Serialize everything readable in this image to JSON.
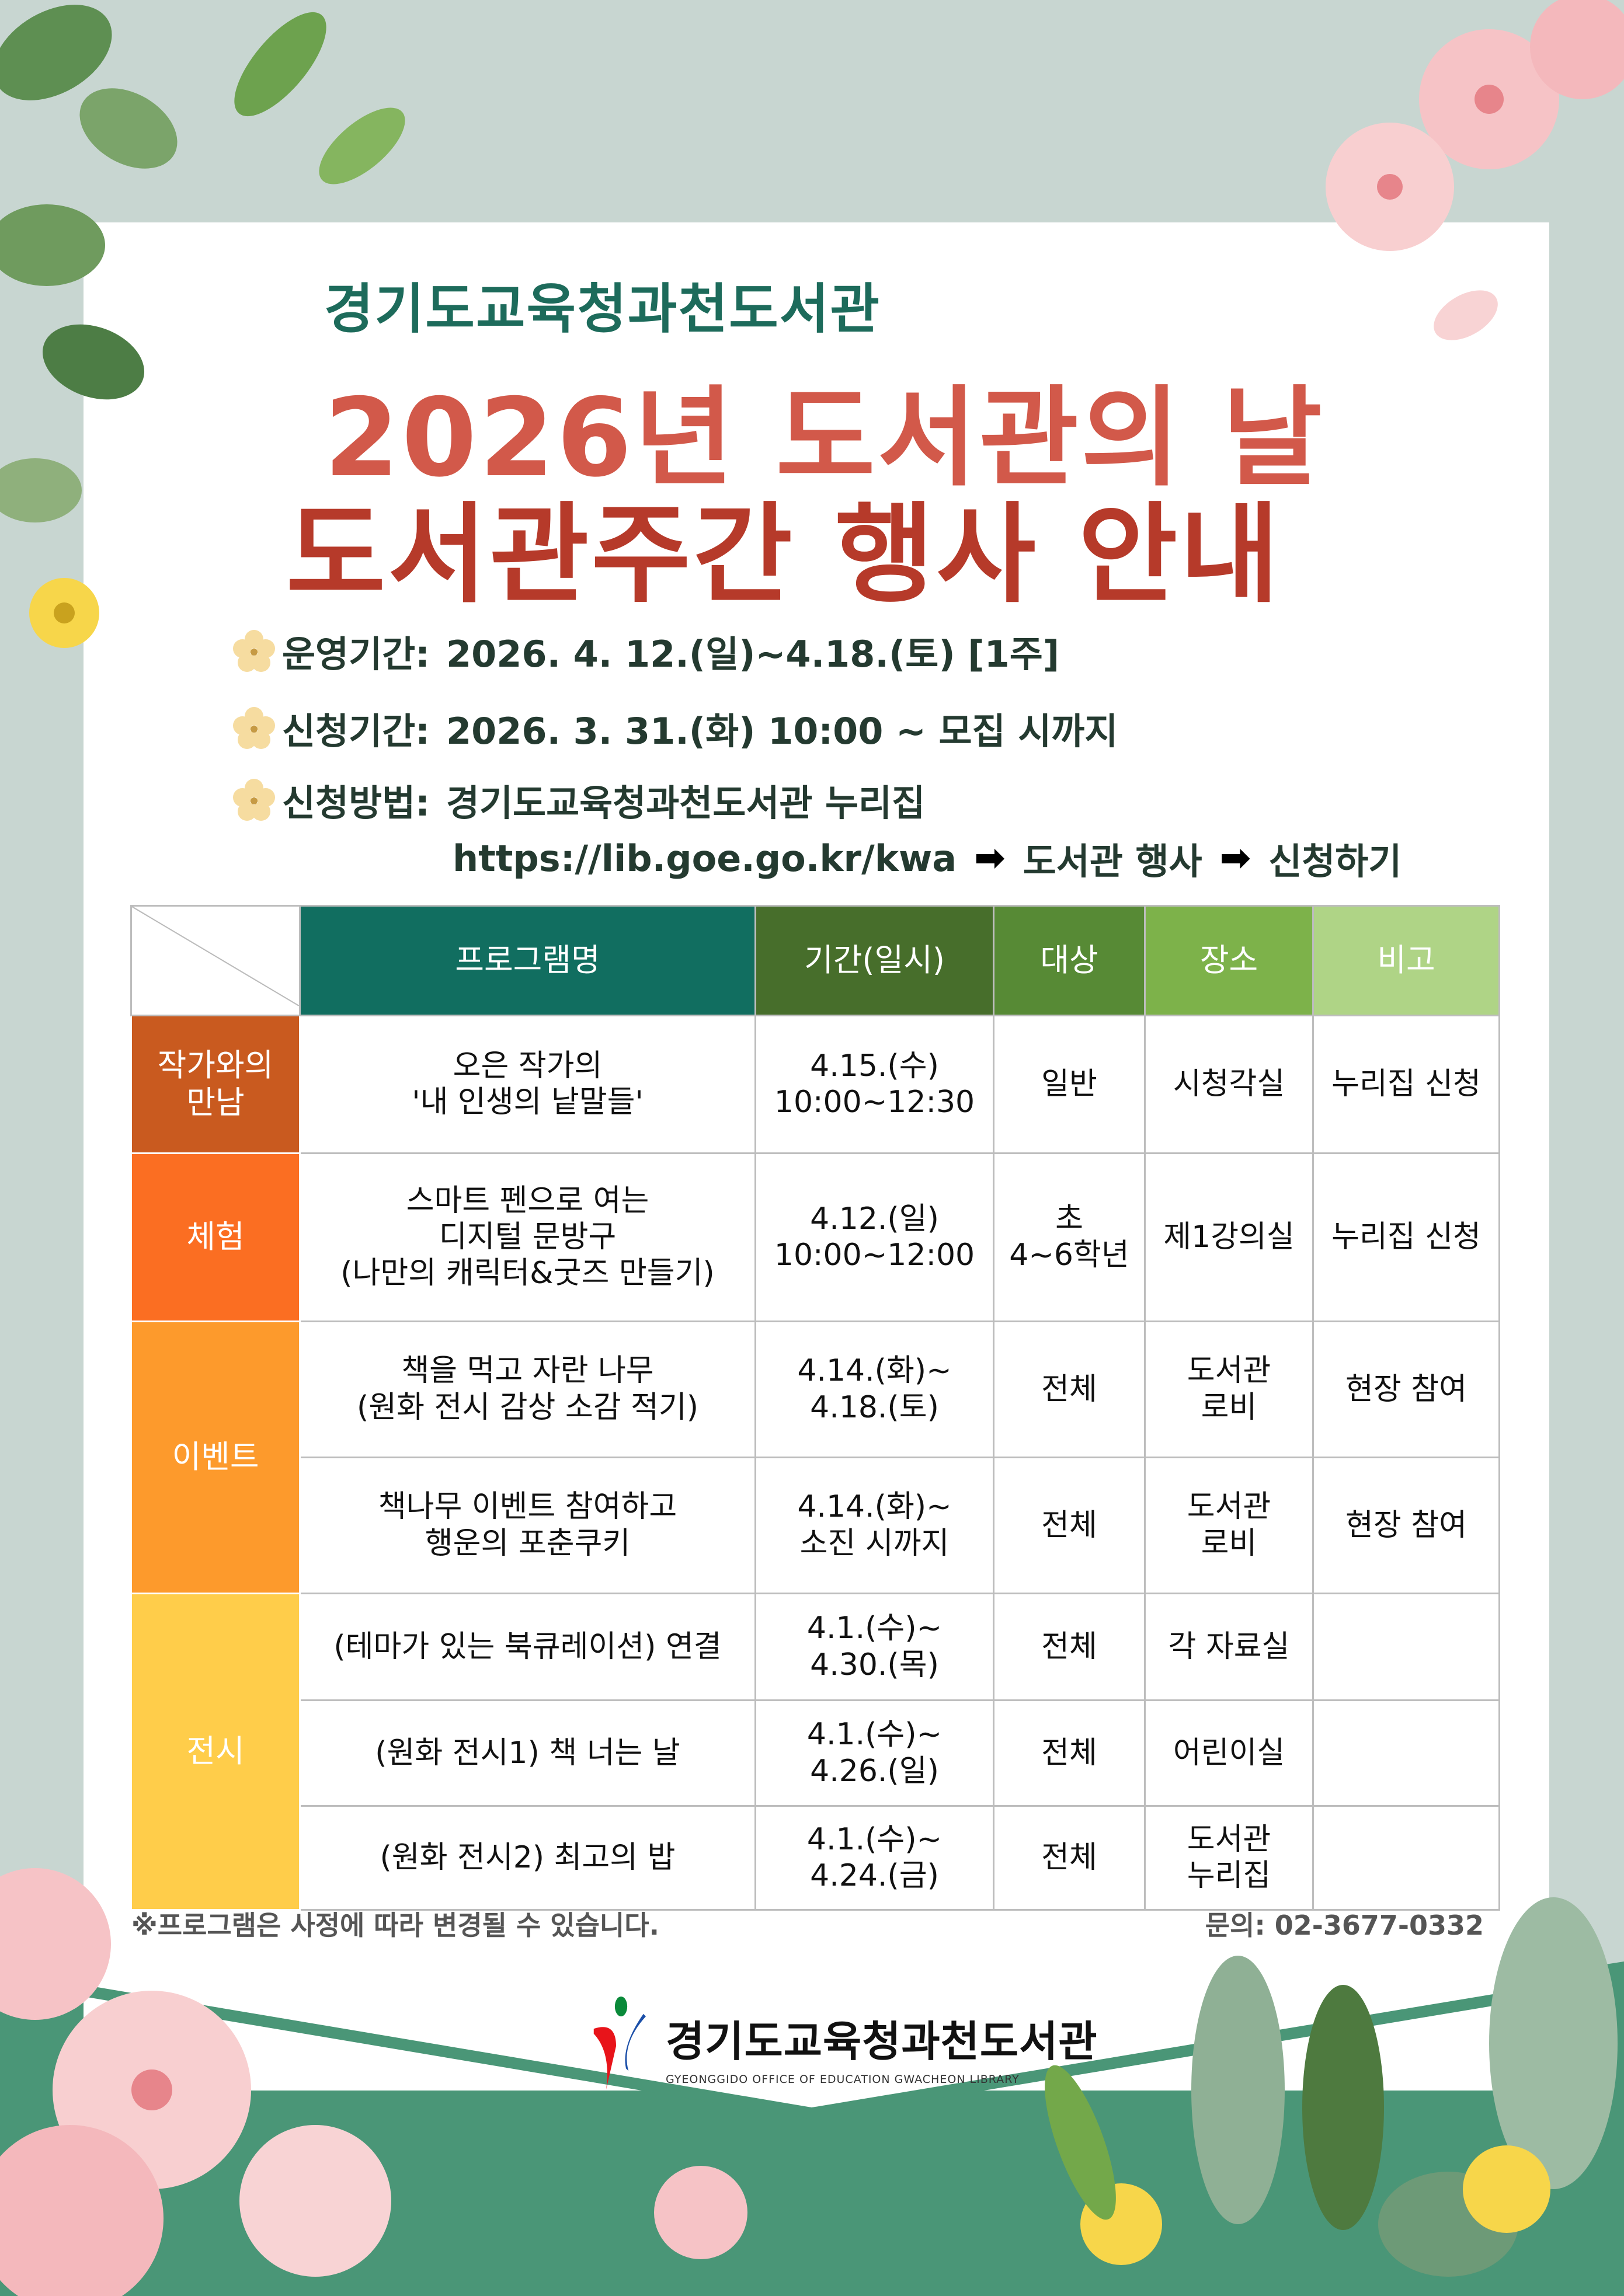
{
  "header": {
    "org": "경기도교육청과천도서관",
    "title_line1": "2026년 도서관의 날",
    "title_line2": "도서관주간 행사 안내"
  },
  "info": [
    {
      "label": "운영기간:",
      "value": "2026. 4. 12.(일)~4.18.(토) [1주]"
    },
    {
      "label": "신청기간:",
      "value": "2026. 3. 31.(화) 10:00 ~ 모집 시까지"
    },
    {
      "label": "신청방법:",
      "value": "경기도교육청과천도서관 누리집"
    }
  ],
  "path": {
    "url": "https://lib.goe.go.kr/kwa",
    "step1": "도서관 행사",
    "step2": "신청하기"
  },
  "table": {
    "headers": [
      "프로그램명",
      "기간(일시)",
      "대상",
      "장소",
      "비고"
    ],
    "header_colors": [
      "#116e60",
      "#476e2b",
      "#578a35",
      "#7db24a",
      "#afd486"
    ],
    "categories": [
      {
        "label": "작가와의\n만남",
        "color": "#c95a1f"
      },
      {
        "label": "체험",
        "color": "#fb6e22"
      },
      {
        "label": "이벤트",
        "color": "#fd9a2c"
      },
      {
        "label": "전시",
        "color": "#ffcd4a"
      }
    ],
    "rows": [
      {
        "program": "오은 작가의\n'내 인생의 낱말들'",
        "period": "4.15.(수)\n10:00~12:30",
        "target": "일반",
        "place": "시청각실",
        "note": "누리집 신청"
      },
      {
        "program": "스마트 펜으로 여는\n디지털 문방구\n(나만의 캐릭터&굿즈 만들기)",
        "period": "4.12.(일)\n10:00~12:00",
        "target": "초\n4~6학년",
        "place": "제1강의실",
        "note": "누리집 신청"
      },
      {
        "program": "책을 먹고 자란 나무\n(원화 전시 감상 소감 적기)",
        "period": "4.14.(화)~\n4.18.(토)",
        "target": "전체",
        "place": "도서관\n로비",
        "note": "현장 참여"
      },
      {
        "program": "책나무 이벤트 참여하고\n행운의 포춘쿠키",
        "period": "4.14.(화)~\n소진 시까지",
        "target": "전체",
        "place": "도서관\n로비",
        "note": "현장 참여"
      },
      {
        "program": "(테마가 있는 북큐레이션) 연결",
        "period": "4.1.(수)~\n4.30.(목)",
        "target": "전체",
        "place": "각 자료실",
        "note": ""
      },
      {
        "program": "(원화 전시1) 책 너는 날",
        "period": "4.1.(수)~\n4.26.(일)",
        "target": "전체",
        "place": "어린이실",
        "note": ""
      },
      {
        "program": "(원화 전시2) 최고의 밥",
        "period": "4.1.(수)~\n4.24.(금)",
        "target": "전체",
        "place": "도서관\n누리집",
        "note": ""
      }
    ]
  },
  "footer": {
    "note": "※프로그램은 사정에 따라 변경될 수 있습니다.",
    "contact": "문의: 02-3677-0332"
  },
  "logo": {
    "korean": "경기도교육청과천도서관",
    "english": "GYEONGGIDO OFFICE OF EDUCATION GWACHEON LIBRARY"
  },
  "colors": {
    "background": "#c8d6d1",
    "title_red": "#c8493a",
    "org_teal": "#1d6b5b",
    "bottom_green": "#4a9677"
  }
}
